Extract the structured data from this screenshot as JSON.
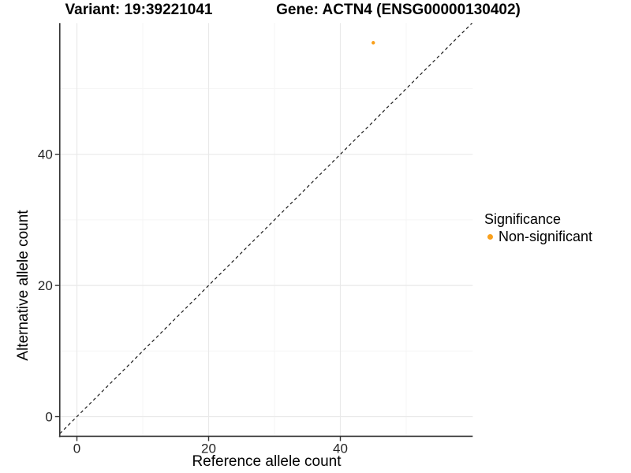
{
  "chart_data": {
    "type": "scatter",
    "titles": {
      "left": "Variant: 19:39221041",
      "right": "Gene: ACTN4 (ENSG00000130402)"
    },
    "xlabel": "Reference allele count",
    "ylabel": "Alternative allele count",
    "x_ticks": [
      0,
      20,
      40
    ],
    "y_ticks": [
      0,
      20,
      40
    ],
    "x_minor_ticks": [
      10,
      30,
      50
    ],
    "y_minor_ticks": [
      10,
      30,
      50
    ],
    "xlim": [
      -2.6,
      60.1
    ],
    "ylim": [
      -3.0,
      60.0
    ],
    "grid": "major+minor",
    "legend_position": "right",
    "points": [
      {
        "x": 45,
        "y": 57,
        "series": "Non-significant"
      }
    ],
    "identity_line": {
      "slope": 1,
      "intercept": 0,
      "style": "dashed",
      "color": "#1a1a1a"
    },
    "legend": {
      "title": "Significance",
      "entries": [
        {
          "label": "Non-significant",
          "color": "#F9A01C"
        }
      ]
    },
    "colors": {
      "background": "#ffffff",
      "grid_major": "#E9E9E9",
      "grid_minor": "#F5F5F5",
      "axis_line": "#333333",
      "tick_mark": "#333333",
      "tick_text": "#262626",
      "point": "#F9A01C"
    }
  }
}
